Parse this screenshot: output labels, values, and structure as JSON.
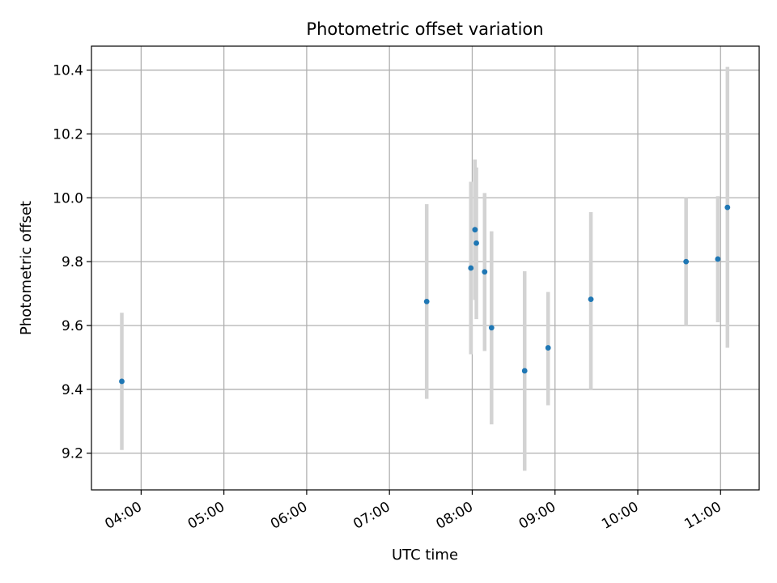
{
  "chart_data": {
    "type": "scatter",
    "title": "Photometric offset variation",
    "xlabel": "UTC time",
    "ylabel": "Photometric offset",
    "x_ticks": [
      "04:00",
      "05:00",
      "06:00",
      "07:00",
      "08:00",
      "09:00",
      "10:00",
      "11:00"
    ],
    "y_ticks": [
      "9.2",
      "9.4",
      "9.6",
      "9.8",
      "10.0",
      "10.2",
      "10.4"
    ],
    "xlim": [
      "03:24",
      "11:28"
    ],
    "ylim": [
      9.085,
      10.475
    ],
    "grid": true,
    "colors": {
      "point": "#1f77b4",
      "errorbar": "#d3d3d3",
      "grid": "#b0b0b0"
    },
    "points": [
      {
        "x": "03:46",
        "y": 9.425,
        "ylow": 9.21,
        "yhigh": 9.64
      },
      {
        "x": "07:27",
        "y": 9.675,
        "ylow": 9.37,
        "yhigh": 9.98
      },
      {
        "x": "07:59",
        "y": 9.78,
        "ylow": 9.51,
        "yhigh": 10.05
      },
      {
        "x": "08:02",
        "y": 9.9,
        "ylow": 9.68,
        "yhigh": 10.12
      },
      {
        "x": "08:03",
        "y": 9.858,
        "ylow": 9.62,
        "yhigh": 10.095
      },
      {
        "x": "08:09",
        "y": 9.768,
        "ylow": 9.52,
        "yhigh": 10.015
      },
      {
        "x": "08:14",
        "y": 9.593,
        "ylow": 9.29,
        "yhigh": 9.895
      },
      {
        "x": "08:38",
        "y": 9.458,
        "ylow": 9.145,
        "yhigh": 9.77
      },
      {
        "x": "08:55",
        "y": 9.53,
        "ylow": 9.35,
        "yhigh": 9.705
      },
      {
        "x": "09:26",
        "y": 9.682,
        "ylow": 9.4,
        "yhigh": 9.955
      },
      {
        "x": "10:35",
        "y": 9.8,
        "ylow": 9.6,
        "yhigh": 10.0
      },
      {
        "x": "10:58",
        "y": 9.808,
        "ylow": 9.61,
        "yhigh": 10.005
      },
      {
        "x": "11:05",
        "y": 9.97,
        "ylow": 9.53,
        "yhigh": 10.41
      }
    ]
  }
}
